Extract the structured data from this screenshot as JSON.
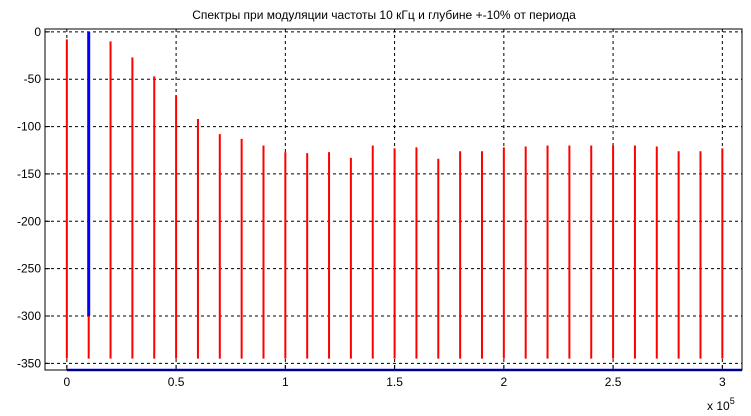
{
  "chart_data": {
    "type": "line",
    "title": "Спектры при модуляции частоты 10 кГц и глубине +-10% от периода",
    "xlabel": "",
    "ylabel": "",
    "x_exponent_label": "x 10",
    "x_exponent_power": "5",
    "xlim": [
      -10000,
      309000
    ],
    "ylim": [
      -357,
      3
    ],
    "grid": true,
    "x_ticks": [
      {
        "value": 0,
        "label": "0"
      },
      {
        "value": 50000,
        "label": "0.5"
      },
      {
        "value": 100000,
        "label": "1"
      },
      {
        "value": 150000,
        "label": "1.5"
      },
      {
        "value": 200000,
        "label": "2"
      },
      {
        "value": 250000,
        "label": "2.5"
      },
      {
        "value": 300000,
        "label": "3"
      }
    ],
    "y_ticks": [
      {
        "value": 0,
        "label": "0"
      },
      {
        "value": -50,
        "label": "-50"
      },
      {
        "value": -100,
        "label": "-100"
      },
      {
        "value": -150,
        "label": "-150"
      },
      {
        "value": -200,
        "label": "-200"
      },
      {
        "value": -250,
        "label": "-250"
      },
      {
        "value": -300,
        "label": "-300"
      },
      {
        "value": -350,
        "label": "-350"
      }
    ],
    "series": [
      {
        "color": "#ff0000",
        "noise_floor": -345,
        "peaks_x": [
          0,
          10000,
          20000,
          30000,
          40000,
          50000,
          60000,
          70000,
          80000,
          90000,
          100000,
          110000,
          120000,
          130000,
          140000,
          150000,
          160000,
          170000,
          180000,
          190000,
          200000,
          210000,
          220000,
          230000,
          240000,
          250000,
          260000,
          270000,
          280000,
          290000,
          300000
        ],
        "peaks_y": [
          -8,
          0,
          -10,
          -27,
          -47,
          -67,
          -92,
          -108,
          -113,
          -120,
          -127,
          -128,
          -127,
          -133,
          -120,
          -123,
          -122,
          -134,
          -126,
          -126,
          -122,
          -121,
          -120,
          -120,
          -120,
          -120,
          -120,
          -121,
          -126,
          -126,
          -123
        ]
      },
      {
        "color": "#0000ff",
        "noise_floor": -345,
        "peaks_x": [
          10000
        ],
        "peaks_y": [
          0
        ]
      }
    ]
  }
}
